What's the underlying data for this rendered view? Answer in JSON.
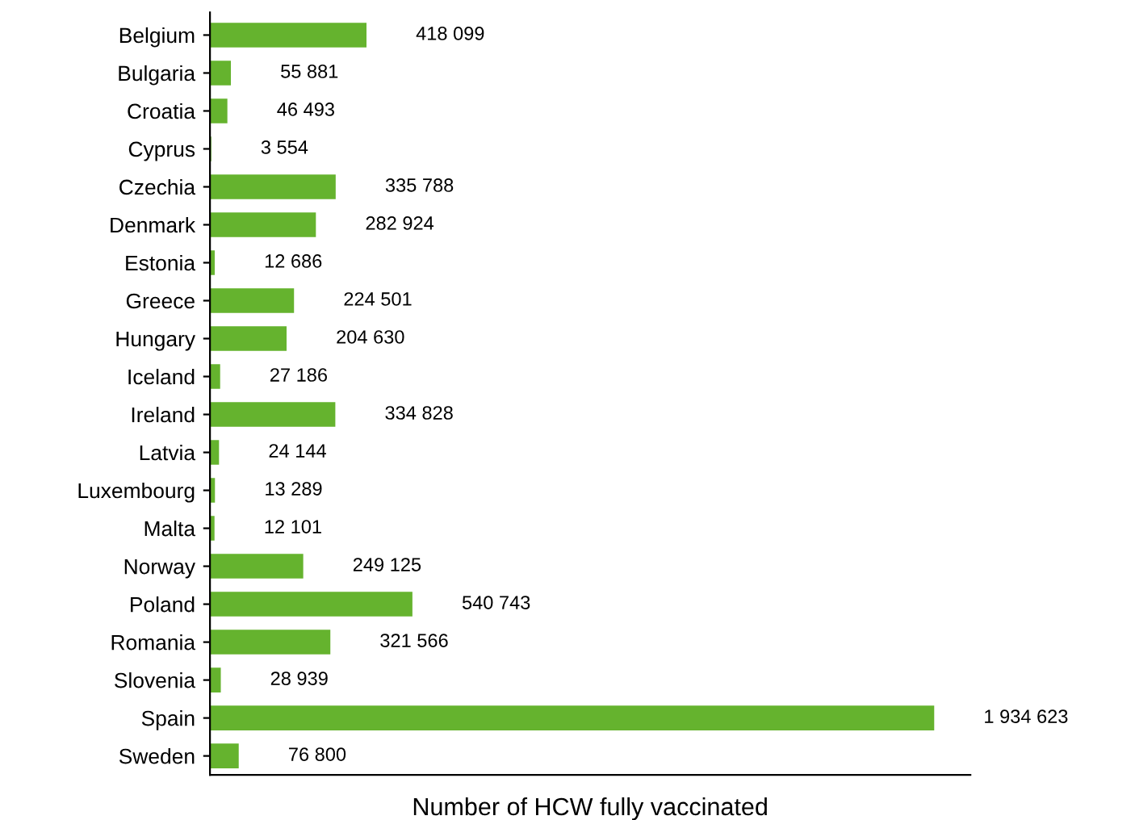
{
  "chart_data": {
    "type": "bar",
    "orientation": "horizontal",
    "xlabel": "Number of HCW fully vaccinated",
    "categories": [
      "Belgium",
      "Bulgaria",
      "Croatia",
      "Cyprus",
      "Czechia",
      "Denmark",
      "Estonia",
      "Greece",
      "Hungary",
      "Iceland",
      "Ireland",
      "Latvia",
      "Luxembourg",
      "Malta",
      "Norway",
      "Poland",
      "Romania",
      "Slovenia",
      "Spain",
      "Sweden"
    ],
    "values": [
      418099,
      55881,
      46493,
      3554,
      335788,
      282924,
      12686,
      224501,
      204630,
      27186,
      334828,
      24144,
      13289,
      12101,
      249125,
      540743,
      321566,
      28939,
      1934623,
      76800
    ],
    "value_labels": [
      "418 099",
      "55 881",
      "46 493",
      "3 554",
      "335 788",
      "282 924",
      "12 686",
      "224 501",
      "204 630",
      "27 186",
      "334 828",
      "24 144",
      "13 289",
      "12 101",
      "249 125",
      "540 743",
      "321 566",
      "28 939",
      "1 934 623",
      "76 800"
    ],
    "color": "#65b32e",
    "tick_labels": "y",
    "grid": false
  }
}
